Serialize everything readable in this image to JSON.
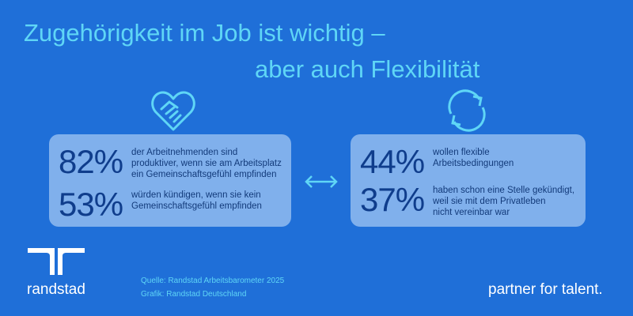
{
  "header": {
    "title_lines": [
      "Zugehörigkeit im Job ist wichtig –",
      "aber auch Flexibilität"
    ]
  },
  "panels": [
    {
      "stats": [
        {
          "figure": "82%",
          "lines": [
            "der Arbeitnehmenden sind",
            "produktiver, wenn sie am Arbeitsplatz",
            "ein Gemeinschaftsgefühl empfinden"
          ]
        },
        {
          "figure": "53%",
          "lines": [
            "würden kündigen, wenn sie kein",
            "Gemeinschaftsgefühl empfinden"
          ]
        }
      ]
    },
    {
      "stats": [
        {
          "figure": "44%",
          "lines": [
            "wollen flexible",
            "Arbeitsbedingungen"
          ]
        },
        {
          "figure": "37%",
          "lines": [
            "haben schon eine Stelle gekündigt,",
            "weil sie mit dem Privatleben",
            "nicht vereinbar war"
          ]
        }
      ]
    }
  ],
  "source": {
    "lines": [
      "Quelle: Randstad Arbeitsbarometer 2025",
      "Grafik: Randstad Deutschland"
    ]
  },
  "brand": {
    "name": "randstad",
    "tagline": "partner for talent."
  }
}
